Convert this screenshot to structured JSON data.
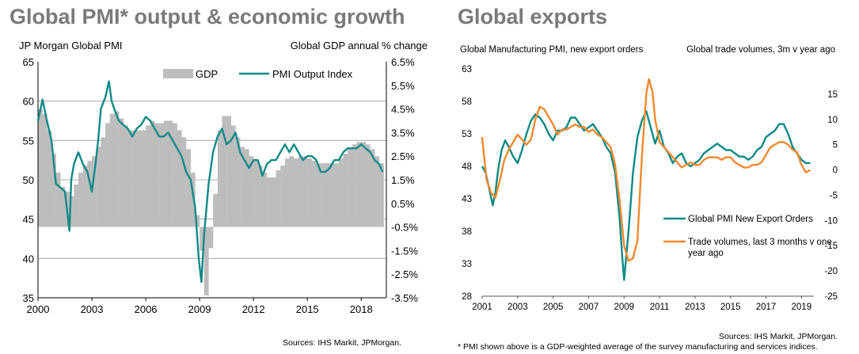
{
  "titles": {
    "left": "Global PMI* output & economic growth",
    "right": "Global exports"
  },
  "sources": {
    "left": "Sources: IHS Markit, JPMorgan.",
    "right": "Sources: IHS Markit, JPMorgan.",
    "footnote": "* PMI shown above is a GDP-weighted average of the survey manufacturing and services indices."
  },
  "colors": {
    "teal": "#0f8a87",
    "orange": "#f08a2e",
    "gdp_bar": "#bdbdbd",
    "grid": "#9a9a9a"
  },
  "chart_data": [
    {
      "type": "bar+line",
      "title": "Global PMI* output & economic growth",
      "ylabel_left": "JP Morgan Global PMI",
      "ylabel_right": "Global GDP annual % change",
      "ylim_left": [
        35,
        65
      ],
      "ylim_right": [
        -3.5,
        6.5
      ],
      "yticks_left": [
        "65",
        "60",
        "55",
        "50",
        "45",
        "40",
        "35"
      ],
      "yticks_right": [
        "6.5%",
        "5.5%",
        "4.5%",
        "3.5%",
        "2.5%",
        "1.5%",
        "0.5%",
        "-0.5%",
        "-1.5%",
        "-2.5%",
        "-3.5%"
      ],
      "xticks": [
        "2000",
        "2003",
        "2006",
        "2009",
        "2012",
        "2015",
        "2018"
      ],
      "xlim": [
        2000,
        2019.4
      ],
      "grid": true,
      "legend": [
        "GDP",
        "PMI Output Index"
      ],
      "gdp_series": {
        "name": "GDP",
        "quarters": [
          2000.0,
          2000.25,
          2000.5,
          2000.75,
          2001.0,
          2001.25,
          2001.5,
          2001.75,
          2002.0,
          2002.25,
          2002.5,
          2002.75,
          2003.0,
          2003.25,
          2003.5,
          2003.75,
          2004.0,
          2004.25,
          2004.5,
          2004.75,
          2005.0,
          2005.25,
          2005.5,
          2005.75,
          2006.0,
          2006.25,
          2006.5,
          2006.75,
          2007.0,
          2007.25,
          2007.5,
          2007.75,
          2008.0,
          2008.25,
          2008.5,
          2008.75,
          2009.0,
          2009.25,
          2009.5,
          2009.75,
          2010.0,
          2010.25,
          2010.5,
          2010.75,
          2011.0,
          2011.25,
          2011.5,
          2011.75,
          2012.0,
          2012.25,
          2012.5,
          2012.75,
          2013.0,
          2013.25,
          2013.5,
          2013.75,
          2014.0,
          2014.25,
          2014.5,
          2014.75,
          2015.0,
          2015.25,
          2015.5,
          2015.75,
          2016.0,
          2016.25,
          2016.5,
          2016.75,
          2017.0,
          2017.25,
          2017.5,
          2017.75,
          2018.0,
          2018.25,
          2018.5,
          2018.75,
          2019.0
        ],
        "values": [
          4.5,
          4.3,
          3.6,
          2.6,
          1.8,
          1.2,
          1.0,
          0.8,
          1.3,
          1.8,
          2.1,
          2.3,
          2.5,
          2.9,
          3.3,
          3.9,
          4.3,
          4.4,
          4.1,
          3.8,
          3.6,
          3.6,
          3.6,
          3.6,
          3.8,
          4.0,
          3.9,
          3.9,
          4.0,
          4.0,
          3.9,
          3.6,
          3.3,
          2.8,
          1.8,
          0.0,
          -1.5,
          -3.4,
          -1.4,
          0.9,
          3.6,
          4.2,
          4.2,
          3.8,
          3.3,
          2.9,
          2.8,
          2.5,
          2.3,
          2.1,
          1.8,
          1.6,
          1.6,
          1.9,
          2.1,
          2.4,
          2.5,
          2.4,
          2.5,
          2.5,
          2.4,
          2.3,
          2.2,
          2.2,
          2.2,
          2.2,
          2.2,
          2.4,
          2.6,
          2.8,
          3.0,
          3.1,
          3.1,
          3.0,
          2.8,
          2.5,
          2.2
        ]
      },
      "pmi_series": {
        "name": "PMI Output Index",
        "x": [
          2000.0,
          2000.25,
          2000.5,
          2000.75,
          2001.0,
          2001.25,
          2001.5,
          2001.75,
          2001.85,
          2002.0,
          2002.25,
          2002.5,
          2002.75,
          2003.0,
          2003.2,
          2003.35,
          2003.5,
          2003.75,
          2003.95,
          2004.1,
          2004.25,
          2004.5,
          2004.75,
          2005.0,
          2005.25,
          2005.5,
          2005.75,
          2006.0,
          2006.25,
          2006.5,
          2006.75,
          2007.0,
          2007.25,
          2007.5,
          2007.75,
          2008.0,
          2008.25,
          2008.5,
          2008.75,
          2008.95,
          2009.1,
          2009.25,
          2009.5,
          2009.75,
          2010.0,
          2010.25,
          2010.5,
          2010.75,
          2011.0,
          2011.25,
          2011.5,
          2011.75,
          2012.0,
          2012.25,
          2012.5,
          2012.75,
          2013.0,
          2013.25,
          2013.5,
          2013.75,
          2014.0,
          2014.25,
          2014.5,
          2014.75,
          2015.0,
          2015.25,
          2015.5,
          2015.75,
          2016.0,
          2016.25,
          2016.5,
          2016.75,
          2017.0,
          2017.25,
          2017.5,
          2017.75,
          2018.0,
          2018.25,
          2018.5,
          2018.75,
          2019.0,
          2019.2
        ],
        "values": [
          57.5,
          60.2,
          57.5,
          55.0,
          49.5,
          49.0,
          48.5,
          43.5,
          50.0,
          52.0,
          53.5,
          52.0,
          51.0,
          48.5,
          52.0,
          55.0,
          59.0,
          60.5,
          62.5,
          60.0,
          59.0,
          57.5,
          57.0,
          56.5,
          55.5,
          56.5,
          57.0,
          58.0,
          57.5,
          56.5,
          55.5,
          55.5,
          56.0,
          55.0,
          54.0,
          53.0,
          51.0,
          50.0,
          46.5,
          40.0,
          37.0,
          43.0,
          49.5,
          53.5,
          55.5,
          56.5,
          54.5,
          55.0,
          56.0,
          53.5,
          52.5,
          51.5,
          52.5,
          52.5,
          50.5,
          52.0,
          52.5,
          52.5,
          53.5,
          54.5,
          53.5,
          54.5,
          53.5,
          52.5,
          53.0,
          53.0,
          52.5,
          51.0,
          51.0,
          51.5,
          52.5,
          52.5,
          53.5,
          54.0,
          54.0,
          54.0,
          54.5,
          54.0,
          53.5,
          52.5,
          52.0,
          51.0
        ]
      }
    },
    {
      "type": "line",
      "title": "Global exports",
      "ylabel_left": "Global Manufacturing PMI, new export orders",
      "ylabel_right": "Global trade volumes,  3m v year ago",
      "ylim_left": [
        28,
        63
      ],
      "ylim_right": [
        -25,
        20
      ],
      "yticks_left": [
        "63",
        "58",
        "53",
        "48",
        "43",
        "38",
        "33",
        "28"
      ],
      "yticks_right": [
        "15",
        "10",
        "5",
        "0",
        "-5",
        "-10",
        "-15",
        "-20",
        "-25"
      ],
      "xticks": [
        "2001",
        "2003",
        "2005",
        "2007",
        "2009",
        "2011",
        "2013",
        "2015",
        "2017",
        "2019"
      ],
      "xlim": [
        2001,
        2019.7
      ],
      "grid": false,
      "legend": [
        "Global PMI New Export Orders",
        "Trade volumes, last 3 months v one year ago"
      ],
      "series": [
        {
          "name": "Global PMI New Export Orders",
          "axis": "left",
          "x": [
            2001.0,
            2001.2,
            2001.4,
            2001.6,
            2001.75,
            2001.9,
            2002.1,
            2002.3,
            2002.5,
            2002.75,
            2003.0,
            2003.25,
            2003.5,
            2003.75,
            2004.0,
            2004.25,
            2004.5,
            2004.75,
            2005.0,
            2005.25,
            2005.5,
            2005.75,
            2006.0,
            2006.25,
            2006.5,
            2006.75,
            2007.0,
            2007.25,
            2007.5,
            2007.75,
            2008.0,
            2008.25,
            2008.5,
            2008.75,
            2008.9,
            2009.0,
            2009.25,
            2009.5,
            2009.75,
            2010.0,
            2010.25,
            2010.5,
            2010.75,
            2011.0,
            2011.25,
            2011.5,
            2011.75,
            2012.0,
            2012.25,
            2012.5,
            2012.75,
            2013.0,
            2013.25,
            2013.5,
            2013.75,
            2014.0,
            2014.25,
            2014.5,
            2014.75,
            2015.0,
            2015.25,
            2015.5,
            2015.75,
            2016.0,
            2016.25,
            2016.5,
            2016.75,
            2017.0,
            2017.25,
            2017.5,
            2017.75,
            2018.0,
            2018.25,
            2018.5,
            2018.75,
            2019.0,
            2019.25,
            2019.5
          ],
          "values": [
            48.0,
            47.0,
            44.5,
            42.0,
            44.0,
            47.5,
            50.5,
            52.0,
            51.0,
            49.5,
            48.5,
            50.5,
            53.0,
            55.0,
            56.0,
            55.5,
            54.5,
            53.0,
            52.0,
            53.5,
            53.5,
            54.0,
            55.5,
            55.5,
            54.5,
            53.5,
            54.0,
            54.5,
            53.5,
            52.5,
            51.0,
            50.0,
            47.0,
            40.0,
            34.0,
            30.5,
            38.0,
            47.0,
            52.5,
            55.0,
            56.5,
            54.0,
            51.5,
            53.5,
            51.0,
            50.0,
            48.5,
            49.5,
            50.0,
            48.5,
            48.0,
            48.5,
            49.0,
            50.0,
            50.5,
            51.0,
            51.5,
            51.0,
            50.5,
            50.5,
            50.0,
            49.5,
            49.5,
            49.0,
            49.5,
            50.5,
            51.0,
            52.5,
            53.0,
            53.5,
            54.5,
            54.5,
            53.0,
            51.0,
            50.0,
            49.0,
            48.5,
            48.5
          ]
        },
        {
          "name": "Trade volumes, last 3 months v one year ago",
          "axis": "right",
          "x": [
            2001.0,
            2001.25,
            2001.5,
            2001.75,
            2002.0,
            2002.25,
            2002.5,
            2002.75,
            2003.0,
            2003.25,
            2003.5,
            2003.75,
            2004.0,
            2004.25,
            2004.5,
            2004.75,
            2005.0,
            2005.25,
            2005.5,
            2005.75,
            2006.0,
            2006.25,
            2006.5,
            2006.75,
            2007.0,
            2007.25,
            2007.5,
            2007.75,
            2008.0,
            2008.25,
            2008.5,
            2008.75,
            2009.0,
            2009.25,
            2009.5,
            2009.75,
            2010.0,
            2010.25,
            2010.4,
            2010.6,
            2010.75,
            2011.0,
            2011.25,
            2011.5,
            2011.75,
            2012.0,
            2012.25,
            2012.5,
            2012.75,
            2013.0,
            2013.25,
            2013.5,
            2013.75,
            2014.0,
            2014.25,
            2014.5,
            2014.75,
            2015.0,
            2015.25,
            2015.5,
            2015.75,
            2016.0,
            2016.25,
            2016.5,
            2016.75,
            2017.0,
            2017.25,
            2017.5,
            2017.75,
            2018.0,
            2018.25,
            2018.5,
            2018.75,
            2019.0,
            2019.25,
            2019.5
          ],
          "values": [
            6.5,
            -2.0,
            -4.5,
            -5.5,
            -2.0,
            2.0,
            4.0,
            5.5,
            7.0,
            6.0,
            5.0,
            6.0,
            10.0,
            12.5,
            12.0,
            10.5,
            9.0,
            7.0,
            8.0,
            8.0,
            8.5,
            9.0,
            8.5,
            8.5,
            7.5,
            8.0,
            7.0,
            6.5,
            5.5,
            4.5,
            1.0,
            -6.0,
            -15.0,
            -18.0,
            -17.5,
            -14.0,
            2.5,
            15.0,
            18.0,
            15.5,
            10.0,
            5.5,
            4.5,
            3.5,
            2.5,
            1.5,
            0.5,
            1.0,
            1.5,
            1.0,
            1.0,
            2.0,
            2.5,
            2.5,
            2.5,
            2.0,
            2.5,
            2.5,
            1.5,
            1.0,
            0.5,
            0.5,
            1.0,
            1.0,
            1.5,
            3.0,
            4.5,
            5.0,
            5.5,
            5.5,
            5.0,
            4.0,
            3.5,
            1.0,
            -0.5,
            0.0
          ]
        }
      ]
    }
  ]
}
